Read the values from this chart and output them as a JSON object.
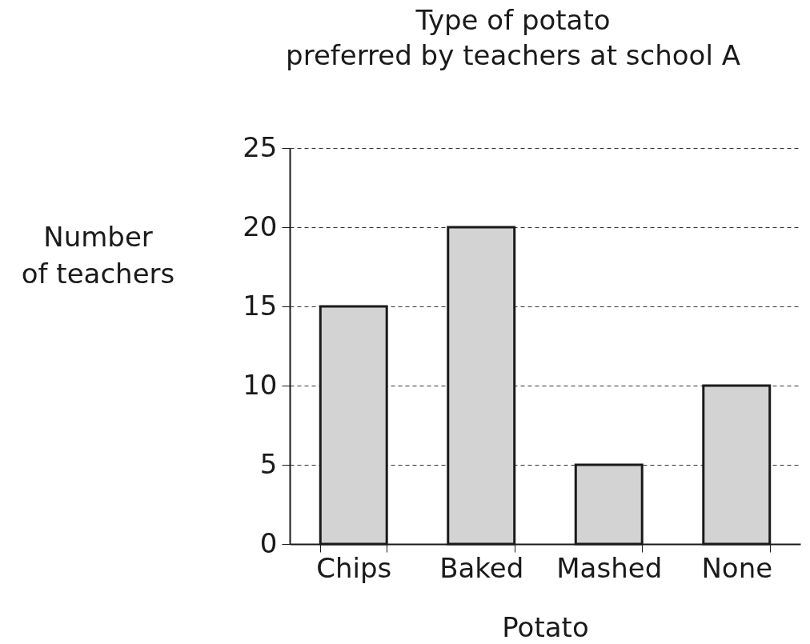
{
  "chart_data": {
    "type": "bar",
    "title": "Type of potato\npreferred by teachers at school A",
    "xlabel": "Potato",
    "ylabel": "Number\nof teachers",
    "categories": [
      "Chips",
      "Baked",
      "Mashed",
      "None"
    ],
    "values": [
      15,
      20,
      5,
      10
    ],
    "color": "#d3d3d3",
    "ylim": [
      0,
      25
    ],
    "yticks": [
      0,
      5,
      10,
      15,
      20,
      25
    ],
    "grid": "y"
  }
}
